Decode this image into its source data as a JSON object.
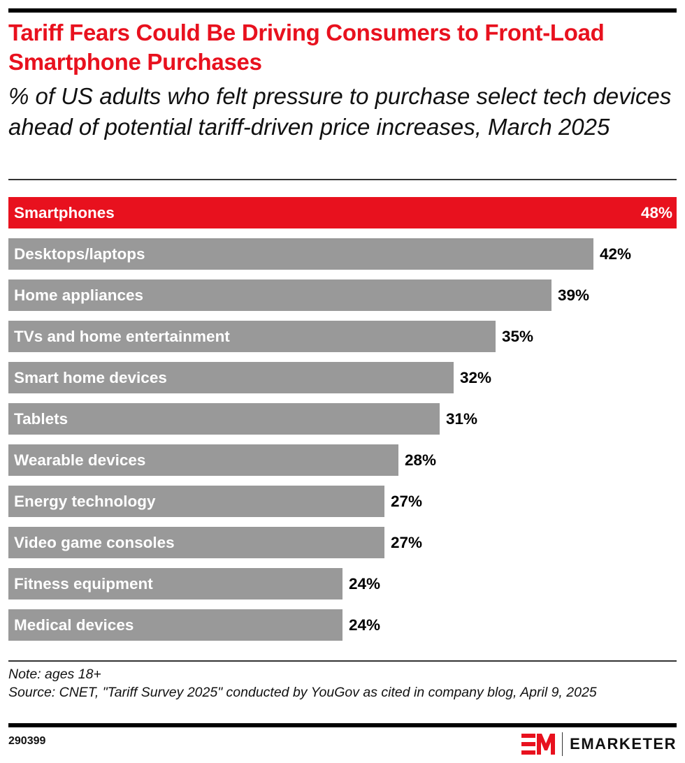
{
  "header": {
    "title": "Tariff Fears Could Be Driving Consumers to Front-Load Smartphone Purchases",
    "subtitle": "% of US adults who felt pressure to purchase select tech devices ahead of potential tariff-driven price increases, March 2025"
  },
  "colors": {
    "accent": "#e8111e",
    "bar": "#999999"
  },
  "chart_data": {
    "type": "bar",
    "orientation": "horizontal",
    "title": "Tariff Fears Could Be Driving Consumers to Front-Load Smartphone Purchases",
    "subtitle": "% of US adults who felt pressure to purchase select tech devices ahead of potential tariff-driven price increases, March 2025",
    "xlabel": "",
    "ylabel": "",
    "unit": "%",
    "grid": false,
    "legend": "none",
    "xlim": [
      0,
      48
    ],
    "highlight": "Smartphones",
    "categories": [
      "Smartphones",
      "Desktops/laptops",
      "Home appliances",
      "TVs and home entertainment",
      "Smart home devices",
      "Tablets",
      "Wearable devices",
      "Energy technology",
      "Video game consoles",
      "Fitness equipment",
      "Medical devices"
    ],
    "values": [
      48,
      42,
      39,
      35,
      32,
      31,
      28,
      27,
      27,
      24,
      24
    ],
    "value_labels": [
      "48%",
      "42%",
      "39%",
      "35%",
      "32%",
      "31%",
      "28%",
      "27%",
      "27%",
      "24%",
      "24%"
    ]
  },
  "footer": {
    "note": "Note: ages 18+",
    "source": "Source: CNET, \"Tariff Survey 2025\" conducted by YouGov as cited in company blog, April 9, 2025",
    "chart_id": "290399",
    "brand": "EMARKETER"
  }
}
